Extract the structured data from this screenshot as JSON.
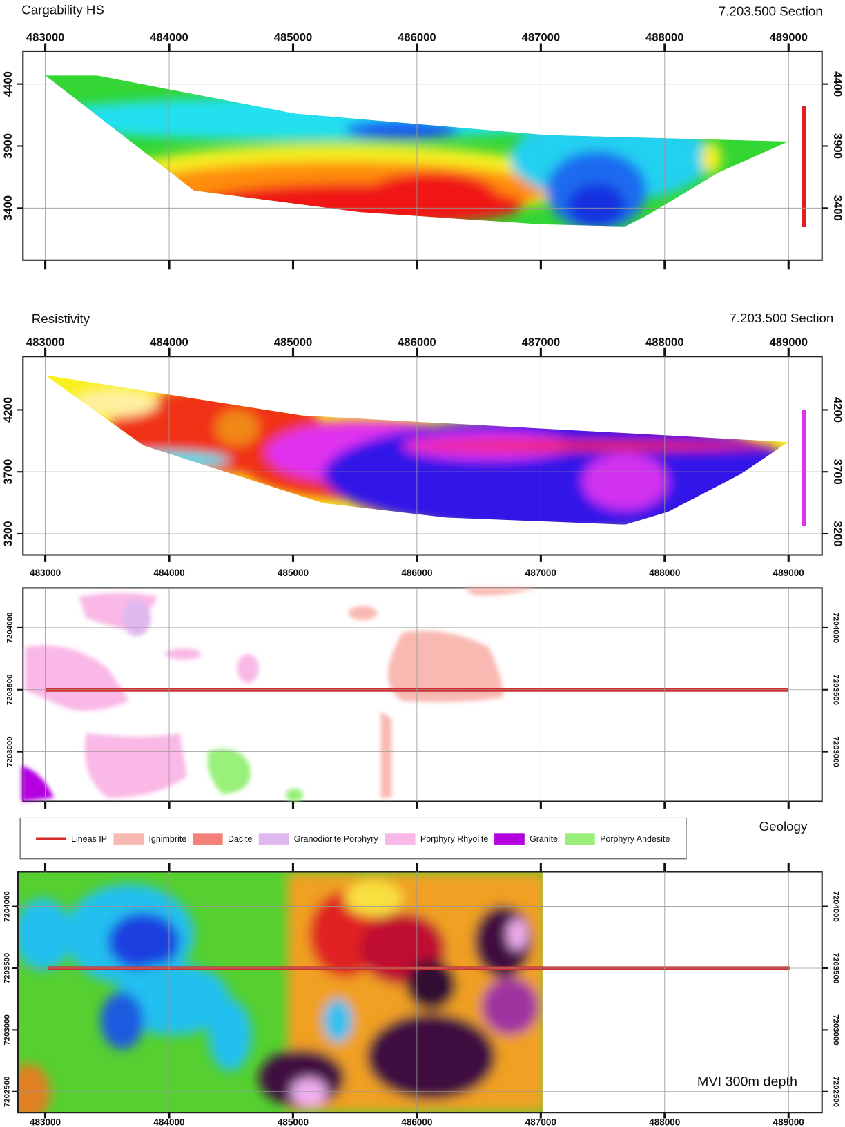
{
  "panels": [
    {
      "title": "Cargability HS",
      "section": "7.203.500 Section",
      "xlim": [
        482820,
        489270
      ],
      "xticks": [
        483000,
        484000,
        485000,
        486000,
        487000,
        488000,
        489000
      ],
      "ylim": [
        2980,
        4660
      ],
      "yticks": [
        4400,
        3900,
        3400
      ]
    },
    {
      "title": "Resistivity",
      "section": "7.203.500 Section",
      "xlim": [
        482820,
        489270
      ],
      "xticks": [
        483000,
        484000,
        485000,
        486000,
        487000,
        488000,
        489000
      ],
      "ylim": [
        3030,
        4630
      ],
      "yticks": [
        4200,
        3700,
        3200
      ]
    },
    {
      "xlim": [
        482820,
        489270
      ],
      "xticks": [
        483000,
        484000,
        485000,
        486000,
        487000,
        488000,
        489000
      ],
      "ylim": [
        7202600,
        7204320
      ],
      "yticks": [
        7204000,
        7203500,
        7203000
      ]
    },
    {
      "title": "MVI 300m depth",
      "xlim": [
        482780,
        489270
      ],
      "xticks": [
        483000,
        484000,
        485000,
        486000,
        487000,
        488000,
        489000
      ],
      "ylim": [
        7202330,
        7204280
      ],
      "yticks": [
        7204000,
        7203500,
        7203000,
        7202500
      ]
    }
  ],
  "legend": {
    "title": "Geology",
    "items": [
      "Lineas IP",
      "Ignimbrite",
      "Dacite",
      "Granodiorite Porphyry",
      "Porphyry Rhyolite",
      "Granite",
      "Porphyry Andesite"
    ]
  }
}
